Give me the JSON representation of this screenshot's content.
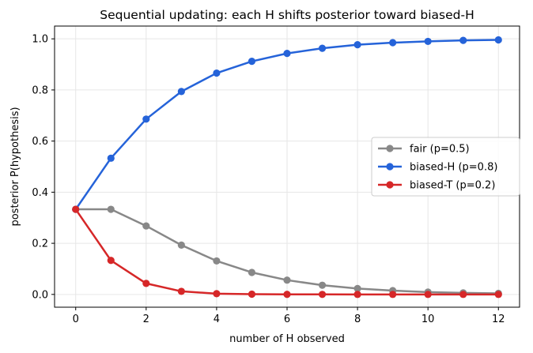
{
  "chart_data": {
    "type": "line",
    "title": "Sequential updating: each H shifts posterior toward biased-H",
    "xlabel": "number of H observed",
    "ylabel": "posterior P(hypothesis)",
    "x": [
      0,
      1,
      2,
      3,
      4,
      5,
      6,
      7,
      8,
      9,
      10,
      11,
      12
    ],
    "xlim": [
      -0.6,
      12.6
    ],
    "ylim": [
      -0.05,
      1.05
    ],
    "xticks": [
      0,
      2,
      4,
      6,
      8,
      10,
      12
    ],
    "yticks": [
      0.0,
      0.2,
      0.4,
      0.6,
      0.8,
      1.0
    ],
    "xtick_labels": [
      "0",
      "2",
      "4",
      "6",
      "8",
      "10",
      "12"
    ],
    "ytick_labels": [
      "0.0",
      "0.2",
      "0.4",
      "0.6",
      "0.8",
      "1.0"
    ],
    "grid": true,
    "legend_position": "center-right",
    "series": [
      {
        "name": "fair (p=0.5)",
        "color": "#888888",
        "values": [
          0.333,
          0.333,
          0.268,
          0.193,
          0.131,
          0.086,
          0.056,
          0.036,
          0.023,
          0.015,
          0.009,
          0.006,
          0.004
        ]
      },
      {
        "name": "biased-H (p=0.8)",
        "color": "#2563d9",
        "values": [
          0.333,
          0.533,
          0.686,
          0.794,
          0.866,
          0.912,
          0.943,
          0.963,
          0.977,
          0.985,
          0.99,
          0.994,
          0.996
        ]
      },
      {
        "name": "biased-T (p=0.2)",
        "color": "#d62728",
        "values": [
          0.333,
          0.133,
          0.043,
          0.012,
          0.003,
          0.001,
          0.0002,
          5e-05,
          1e-05,
          0.0,
          0.0,
          0.0,
          0.0
        ]
      }
    ]
  }
}
